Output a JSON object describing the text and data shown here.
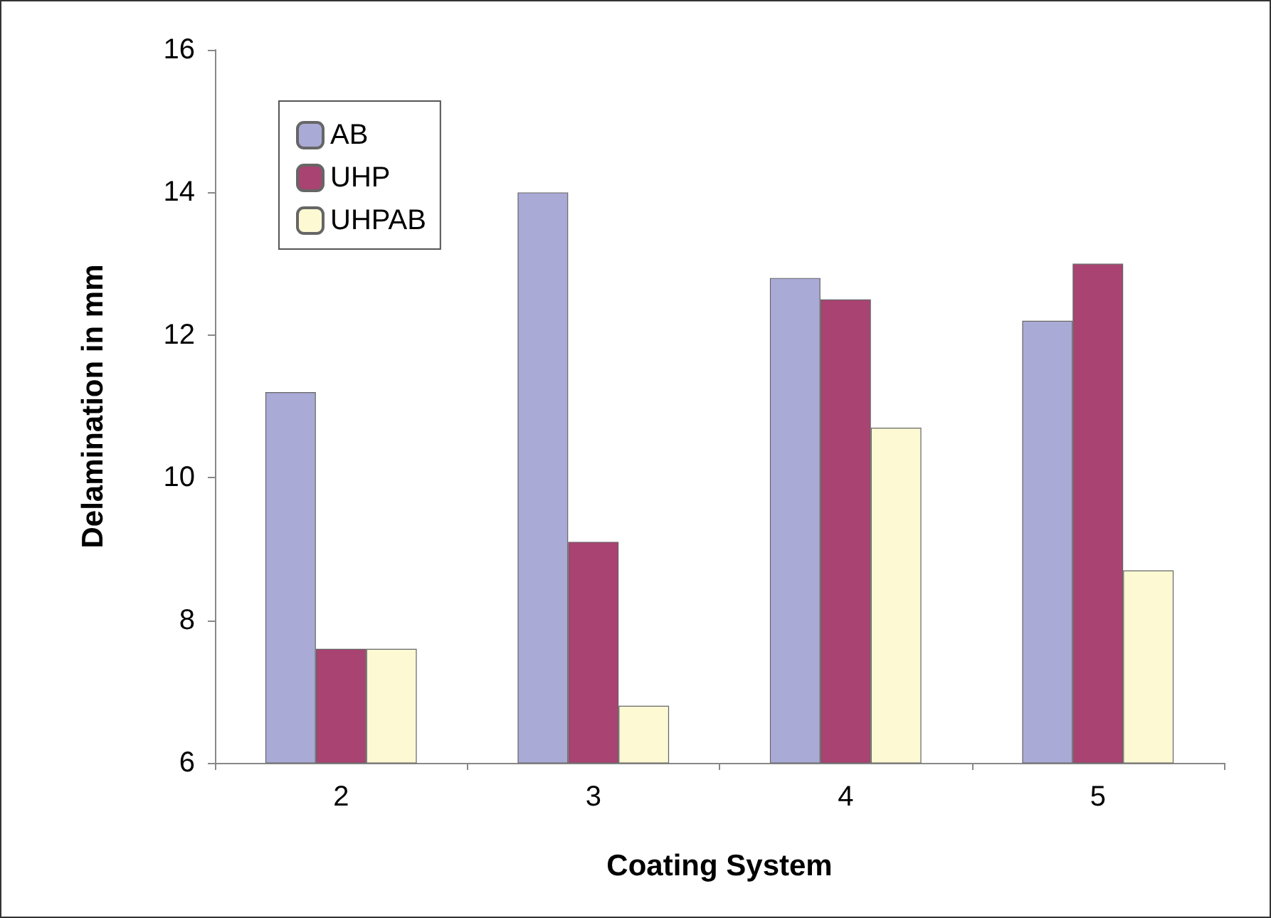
{
  "chart_data": {
    "type": "bar",
    "xlabel": "Coating System",
    "ylabel": "Delamination in mm",
    "categories": [
      "2",
      "3",
      "4",
      "5"
    ],
    "series": [
      {
        "name": "AB",
        "color": "#aaaad6",
        "values": [
          11.2,
          14.0,
          12.8,
          12.2
        ]
      },
      {
        "name": "UHP",
        "color": "#a84372",
        "values": [
          7.6,
          9.1,
          12.5,
          13.0
        ]
      },
      {
        "name": "UHPAB",
        "color": "#fcf9d3",
        "values": [
          7.6,
          6.8,
          10.7,
          8.7
        ]
      }
    ],
    "ylim": [
      6,
      16
    ],
    "yticks": [
      6,
      8,
      10,
      12,
      14,
      16
    ],
    "grid": false,
    "legend": "top left"
  }
}
